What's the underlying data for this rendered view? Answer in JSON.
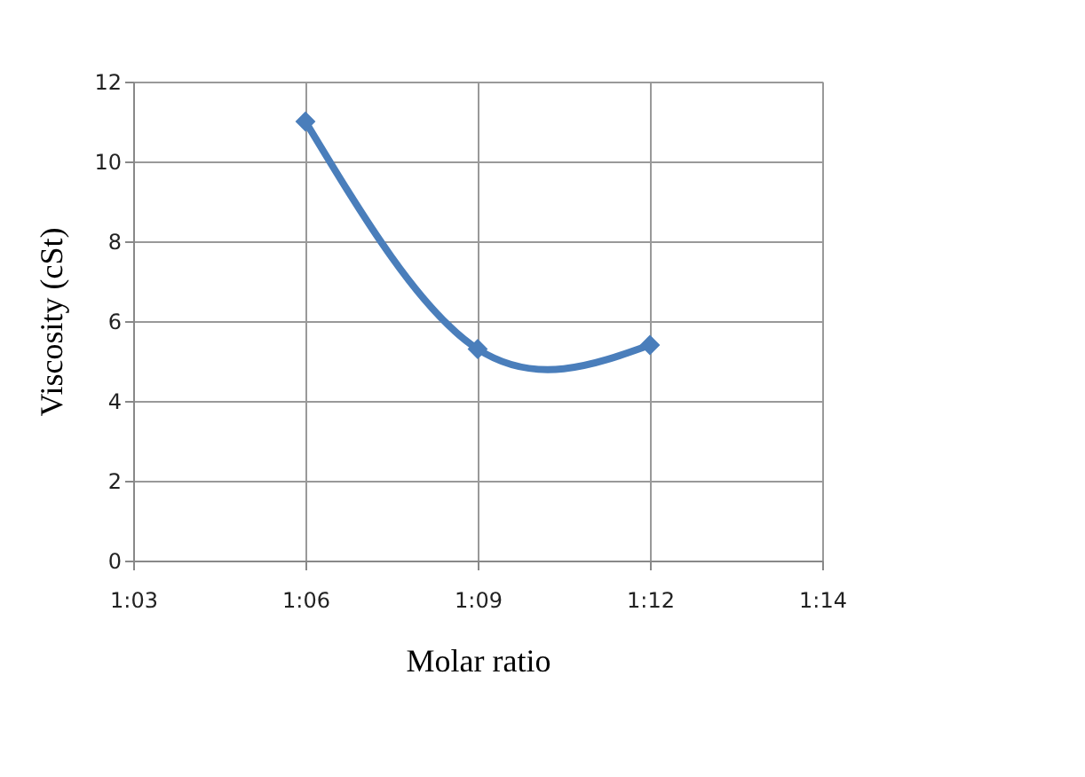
{
  "chart_data": {
    "type": "line",
    "xlabel": "Molar ratio",
    "ylabel": "Viscosity (cSt)",
    "categories": [
      "1:03",
      "1:06",
      "1:09",
      "1:12",
      "1:14"
    ],
    "series": [
      {
        "color": "#4a7ebb",
        "values": [
          null,
          11,
          5.3,
          5.4,
          null
        ]
      }
    ],
    "ylim": [
      0,
      12
    ],
    "yticks": [
      0,
      2,
      4,
      6,
      8,
      10,
      12
    ],
    "grid": true,
    "marker": "diamond",
    "line_style": "solid",
    "legend": false
  }
}
